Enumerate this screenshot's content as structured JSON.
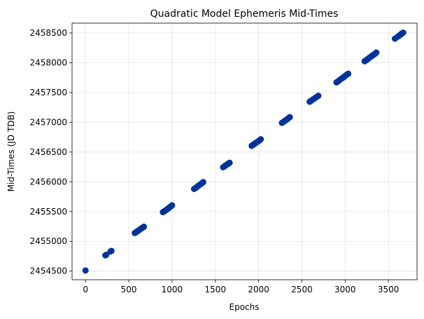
{
  "chart_data": {
    "type": "scatter",
    "title": "Quadratic Model Ephemeris Mid-Times",
    "xlabel": "Epochs",
    "ylabel": "Mid-Times (JD TDB)",
    "xlim": [
      -155,
      3830
    ],
    "ylim": [
      2454355,
      2458665
    ],
    "xticks": [
      0,
      500,
      1000,
      1500,
      2000,
      2500,
      3000,
      3500
    ],
    "yticks": [
      2454500,
      2455000,
      2455500,
      2456000,
      2456500,
      2457000,
      2457500,
      2458000,
      2458500
    ],
    "grid": true,
    "marker_color": "#003399",
    "series": [
      {
        "x": [
          0,
          230,
          240,
          290,
          300,
          570,
          585,
          600,
          615,
          630,
          645,
          660,
          675,
          895,
          910,
          925,
          940,
          955,
          970,
          985,
          1000,
          1255,
          1270,
          1285,
          1300,
          1315,
          1330,
          1345,
          1360,
          1590,
          1605,
          1620,
          1635,
          1650,
          1665,
          1920,
          1935,
          1950,
          1965,
          1980,
          1995,
          2010,
          2025,
          2270,
          2285,
          2300,
          2315,
          2330,
          2345,
          2360,
          2590,
          2610,
          2630,
          2650,
          2670,
          2690,
          2900,
          2915,
          2930,
          2945,
          2960,
          2975,
          2990,
          3005,
          3020,
          3035,
          3225,
          3240,
          3255,
          3270,
          3285,
          3300,
          3315,
          3330,
          3345,
          3360,
          3575,
          3610,
          3625,
          3640,
          3655,
          3670
        ],
        "y": [
          2454510,
          2454765,
          2454775,
          2454830,
          2454840,
          2455140,
          2455155,
          2455170,
          2455185,
          2455200,
          2455215,
          2455230,
          2455245,
          2455490,
          2455505,
          2455520,
          2455535,
          2455550,
          2455570,
          2455585,
          2455605,
          2455880,
          2455895,
          2455910,
          2455930,
          2455945,
          2455960,
          2455975,
          2455995,
          2456245,
          2456260,
          2456275,
          2456290,
          2456305,
          2456320,
          2456605,
          2456620,
          2456635,
          2456650,
          2456665,
          2456680,
          2456695,
          2456715,
          2456990,
          2457005,
          2457020,
          2457035,
          2457050,
          2457070,
          2457085,
          2457345,
          2457365,
          2457385,
          2457405,
          2457425,
          2457445,
          2457670,
          2457685,
          2457700,
          2457720,
          2457735,
          2457750,
          2457765,
          2457785,
          2457800,
          2457815,
          2458025,
          2458040,
          2458055,
          2458070,
          2458090,
          2458105,
          2458120,
          2458135,
          2458150,
          2458170,
          2458405,
          2458440,
          2458455,
          2458475,
          2458490,
          2458505
        ]
      }
    ]
  }
}
